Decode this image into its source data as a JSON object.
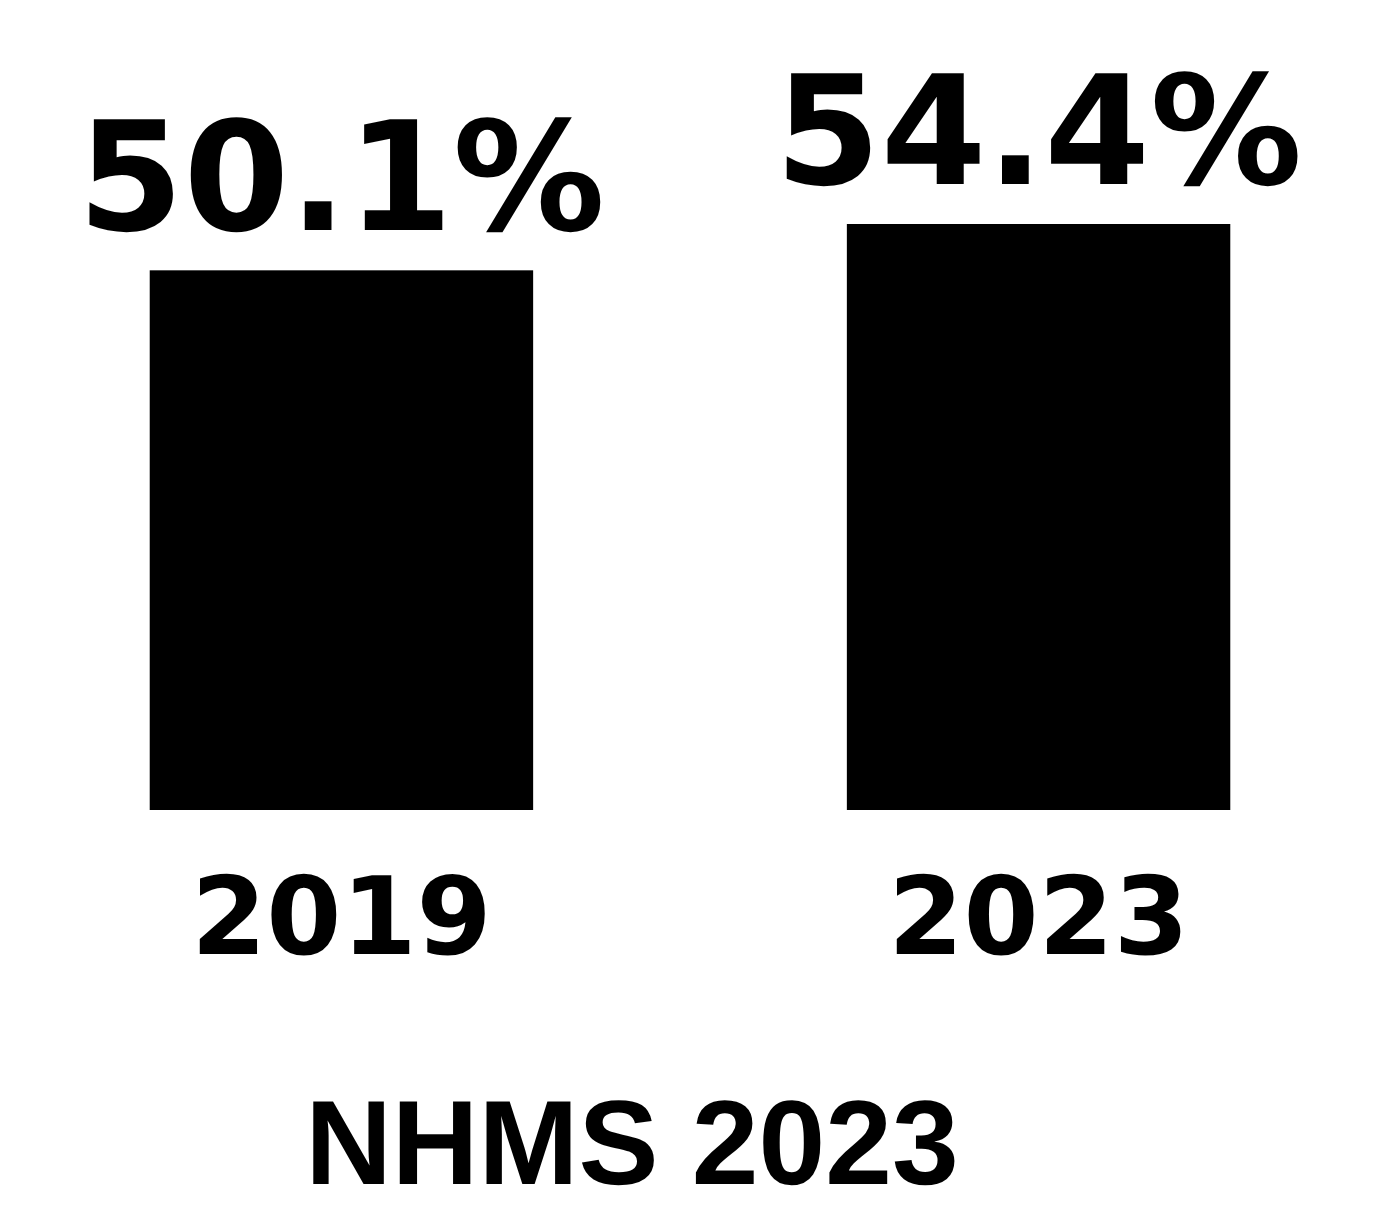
{
  "chart_data": {
    "type": "bar",
    "title": "NHMS 2023",
    "categories": [
      "2019",
      "2023"
    ],
    "values": [
      50.1,
      54.4
    ],
    "value_labels": [
      "50.1%",
      "54.4%"
    ],
    "color": "#000000"
  }
}
